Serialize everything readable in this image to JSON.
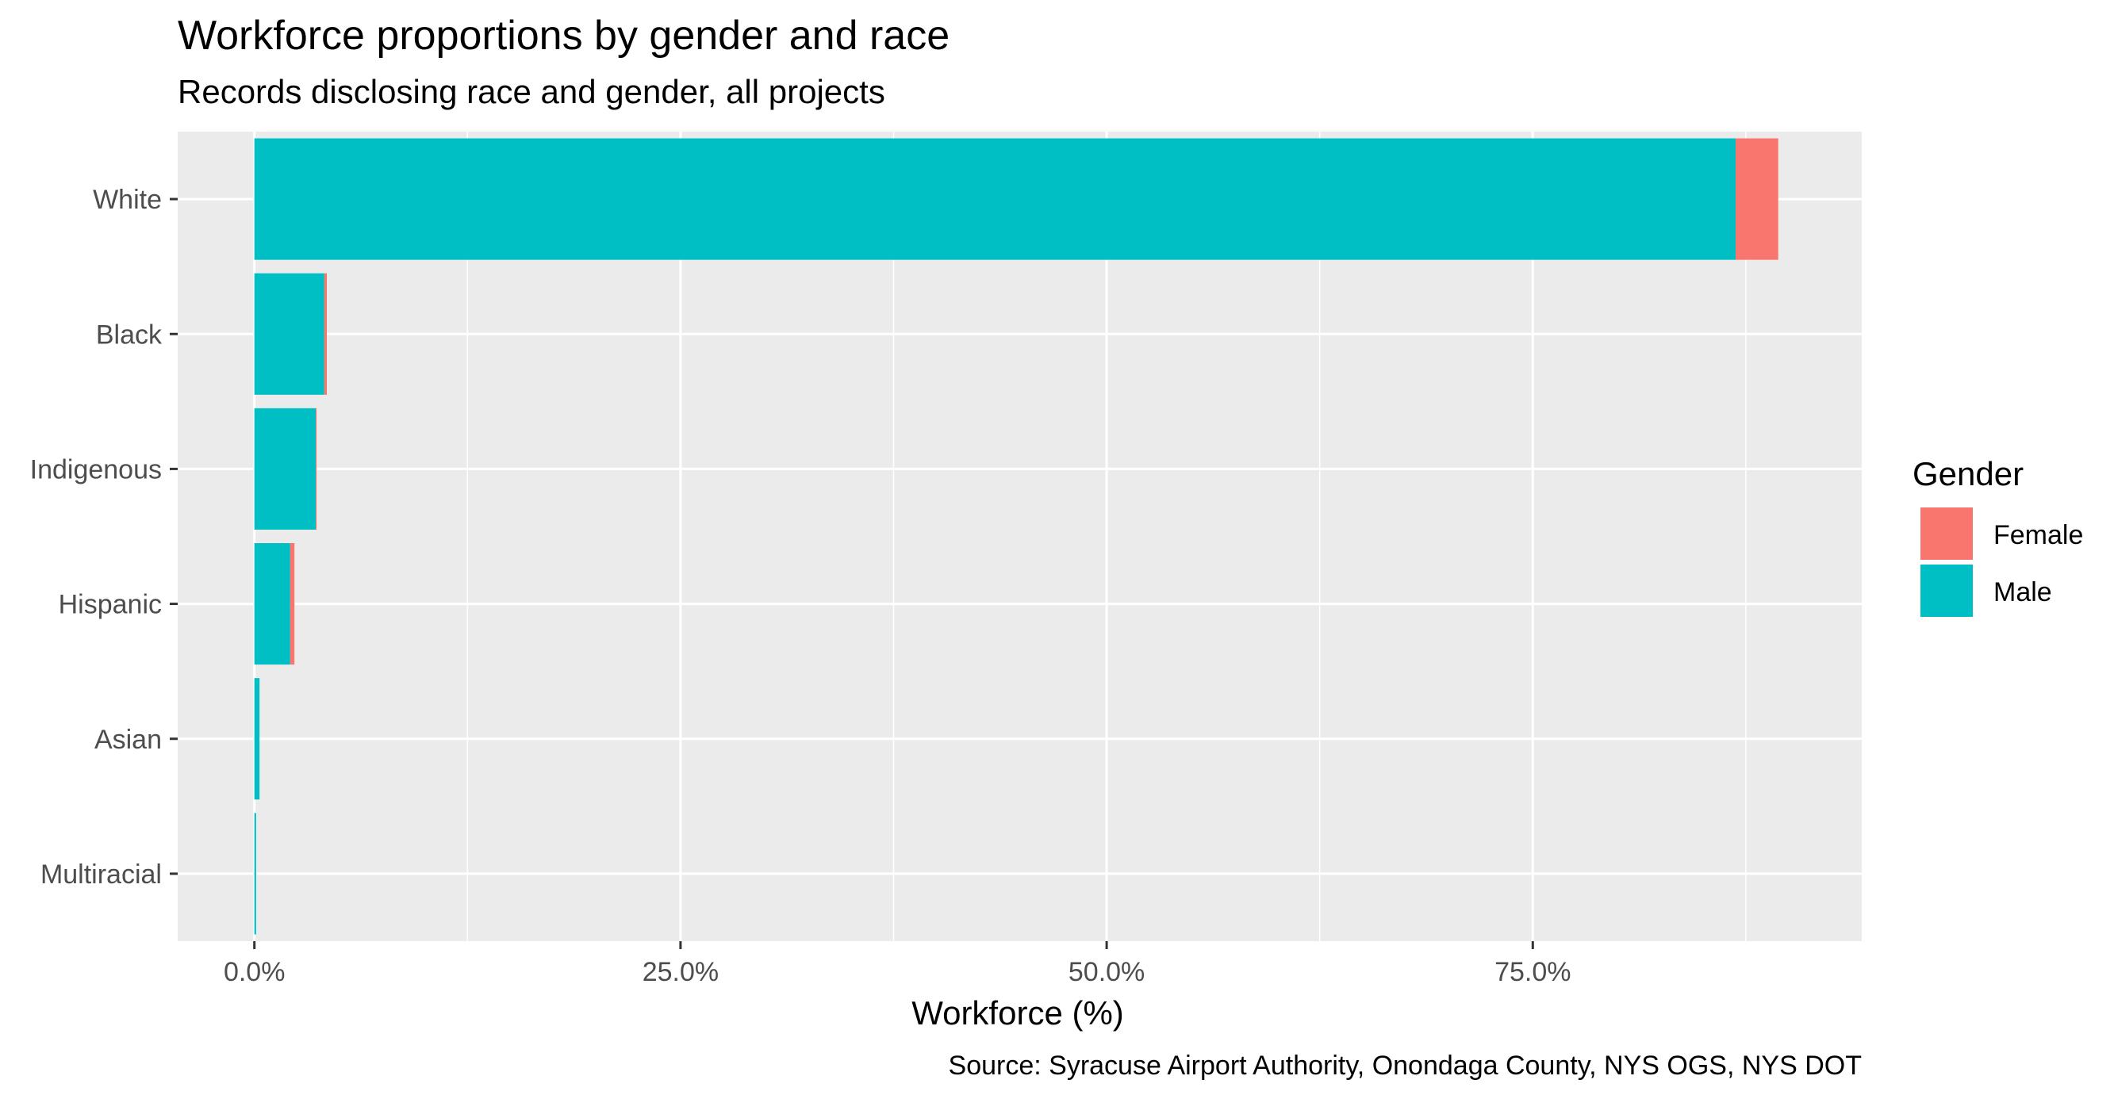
{
  "chart_data": {
    "type": "bar",
    "orientation": "horizontal",
    "stacked": true,
    "title": "Workforce proportions by gender and race",
    "subtitle": "Records disclosing race and gender, all projects",
    "caption": "Source: Syracuse Airport Authority, Onondaga County, NYS OGS, NYS DOT",
    "xlabel": "Workforce (%)",
    "ylabel": "",
    "xlim": [
      -4.5,
      94.3
    ],
    "x_ticks": [
      0,
      25,
      50,
      75
    ],
    "x_tick_labels": [
      "0.0%",
      "25.0%",
      "50.0%",
      "75.0%"
    ],
    "categories": [
      "White",
      "Black",
      "Indigenous",
      "Hispanic",
      "Asian",
      "Multiracial"
    ],
    "series": [
      {
        "name": "Male",
        "color": "#00BFC4",
        "values": [
          86.9,
          4.1,
          3.6,
          2.1,
          0.3,
          0.1
        ]
      },
      {
        "name": "Female",
        "color": "#F8766D",
        "values": [
          2.5,
          0.15,
          0.05,
          0.25,
          0.0,
          0.0
        ]
      }
    ],
    "legend": {
      "title": "Gender",
      "position": "right",
      "entries": [
        {
          "label": "Female",
          "color": "#F8766D"
        },
        {
          "label": "Male",
          "color": "#00BFC4"
        }
      ]
    },
    "grid": true,
    "panel_background": "#EBEBEB",
    "grid_color": "#FFFFFF"
  }
}
